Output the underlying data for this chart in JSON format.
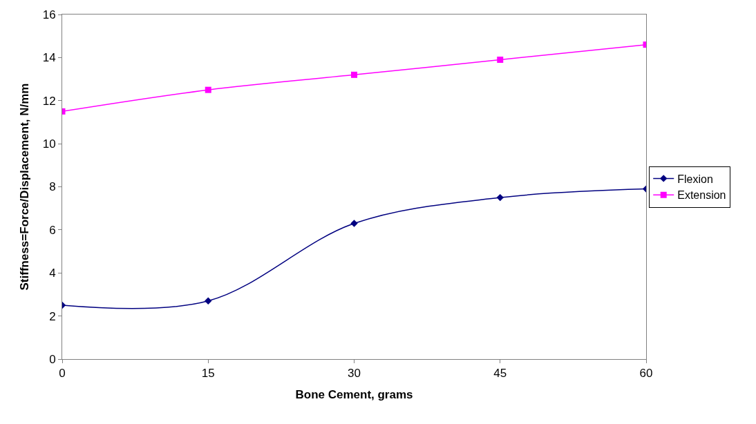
{
  "chart_data": {
    "type": "line",
    "xlabel": "Bone Cement, grams",
    "ylabel": "Stiffness=Force/Displacement, N/mm",
    "x": [
      0,
      15,
      30,
      45,
      60
    ],
    "series": [
      {
        "name": "Flexion",
        "color": "#000080",
        "marker": "diamond",
        "values": [
          2.5,
          2.7,
          6.3,
          7.5,
          7.9
        ]
      },
      {
        "name": "Extension",
        "color": "#ff00ff",
        "marker": "square",
        "values": [
          11.5,
          12.5,
          13.2,
          13.9,
          14.6
        ]
      }
    ],
    "xlim": [
      0,
      60
    ],
    "xticks": [
      0,
      15,
      30,
      45,
      60
    ],
    "ylim": [
      0,
      16
    ],
    "yticks": [
      0,
      2,
      4,
      6,
      8,
      10,
      12,
      14,
      16
    ],
    "legend": "right",
    "line_style": "solid"
  }
}
